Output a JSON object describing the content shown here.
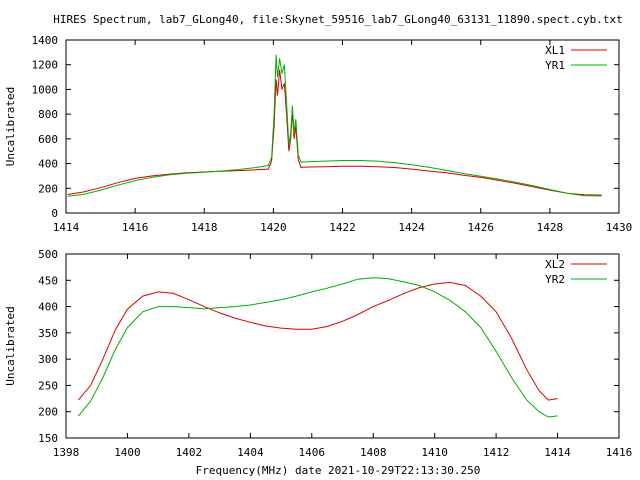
{
  "title": "HIRES Spectrum, lab7_GLong40, file:Skynet_59516_lab7_GLong40_63131_11890.spect.cyb.txt",
  "xlabel": "Frequency(MHz) date 2021-10-29T22:13:30.250",
  "chart_data": [
    {
      "type": "line",
      "ylabel": "Uncalibrated",
      "xlim": [
        1414,
        1430
      ],
      "ylim": [
        0,
        1400
      ],
      "xticks": [
        1414,
        1416,
        1418,
        1420,
        1422,
        1424,
        1426,
        1428,
        1430
      ],
      "yticks": [
        0,
        200,
        400,
        600,
        800,
        1000,
        1200,
        1400
      ],
      "legend": "top-right",
      "series": [
        {
          "name": "XL1",
          "color": "#dd0000",
          "points": [
            [
              1414.05,
              150
            ],
            [
              1414.5,
              170
            ],
            [
              1415,
              205
            ],
            [
              1415.5,
              245
            ],
            [
              1416,
              280
            ],
            [
              1416.5,
              300
            ],
            [
              1417,
              315
            ],
            [
              1417.5,
              325
            ],
            [
              1418,
              332
            ],
            [
              1418.5,
              338
            ],
            [
              1419,
              343
            ],
            [
              1419.5,
              350
            ],
            [
              1419.85,
              355
            ],
            [
              1419.95,
              420
            ],
            [
              1420.02,
              700
            ],
            [
              1420.08,
              1080
            ],
            [
              1420.12,
              950
            ],
            [
              1420.18,
              1160
            ],
            [
              1420.25,
              1000
            ],
            [
              1420.32,
              1050
            ],
            [
              1420.38,
              800
            ],
            [
              1420.45,
              500
            ],
            [
              1420.5,
              600
            ],
            [
              1420.55,
              820
            ],
            [
              1420.6,
              600
            ],
            [
              1420.65,
              700
            ],
            [
              1420.72,
              430
            ],
            [
              1420.8,
              370
            ],
            [
              1421,
              372
            ],
            [
              1421.5,
              375
            ],
            [
              1422,
              378
            ],
            [
              1422.5,
              378
            ],
            [
              1423,
              375
            ],
            [
              1423.5,
              368
            ],
            [
              1424,
              355
            ],
            [
              1424.5,
              340
            ],
            [
              1425,
              325
            ],
            [
              1425.5,
              305
            ],
            [
              1426,
              288
            ],
            [
              1426.5,
              265
            ],
            [
              1427,
              240
            ],
            [
              1427.5,
              212
            ],
            [
              1428,
              185
            ],
            [
              1428.5,
              160
            ],
            [
              1429,
              148
            ],
            [
              1429.5,
              145
            ]
          ]
        },
        {
          "name": "YR1",
          "color": "#00b000",
          "points": [
            [
              1414.05,
              135
            ],
            [
              1414.5,
              150
            ],
            [
              1415,
              185
            ],
            [
              1415.5,
              225
            ],
            [
              1416,
              262
            ],
            [
              1416.5,
              290
            ],
            [
              1417,
              310
            ],
            [
              1417.5,
              322
            ],
            [
              1418,
              330
            ],
            [
              1418.5,
              340
            ],
            [
              1419,
              352
            ],
            [
              1419.5,
              368
            ],
            [
              1419.85,
              385
            ],
            [
              1419.95,
              450
            ],
            [
              1420.02,
              800
            ],
            [
              1420.08,
              1280
            ],
            [
              1420.12,
              1100
            ],
            [
              1420.18,
              1250
            ],
            [
              1420.25,
              1130
            ],
            [
              1420.32,
              1200
            ],
            [
              1420.38,
              900
            ],
            [
              1420.45,
              550
            ],
            [
              1420.5,
              650
            ],
            [
              1420.55,
              870
            ],
            [
              1420.6,
              650
            ],
            [
              1420.65,
              760
            ],
            [
              1420.72,
              470
            ],
            [
              1420.8,
              410
            ],
            [
              1421,
              415
            ],
            [
              1421.5,
              420
            ],
            [
              1422,
              425
            ],
            [
              1422.5,
              425
            ],
            [
              1423,
              420
            ],
            [
              1423.5,
              408
            ],
            [
              1424,
              390
            ],
            [
              1424.5,
              370
            ],
            [
              1425,
              345
            ],
            [
              1425.5,
              320
            ],
            [
              1426,
              298
            ],
            [
              1426.5,
              275
            ],
            [
              1427,
              250
            ],
            [
              1427.5,
              222
            ],
            [
              1428,
              190
            ],
            [
              1428.5,
              160
            ],
            [
              1429,
              140
            ],
            [
              1429.5,
              138
            ]
          ]
        }
      ]
    },
    {
      "type": "line",
      "ylabel": "Uncalibrated",
      "xlim": [
        1398,
        1416
      ],
      "ylim": [
        150,
        500
      ],
      "xticks": [
        1398,
        1400,
        1402,
        1404,
        1406,
        1408,
        1410,
        1412,
        1414,
        1416
      ],
      "yticks": [
        150,
        200,
        250,
        300,
        350,
        400,
        450,
        500
      ],
      "legend": "top-right",
      "series": [
        {
          "name": "XL2",
          "color": "#dd0000",
          "points": [
            [
              1398.4,
              222
            ],
            [
              1398.8,
              250
            ],
            [
              1399.2,
              300
            ],
            [
              1399.6,
              355
            ],
            [
              1400,
              395
            ],
            [
              1400.5,
              420
            ],
            [
              1401,
              428
            ],
            [
              1401.5,
              425
            ],
            [
              1402,
              413
            ],
            [
              1402.5,
              400
            ],
            [
              1403,
              388
            ],
            [
              1403.5,
              378
            ],
            [
              1404,
              370
            ],
            [
              1404.5,
              363
            ],
            [
              1405,
              359
            ],
            [
              1405.5,
              357
            ],
            [
              1406,
              357
            ],
            [
              1406.5,
              362
            ],
            [
              1407,
              372
            ],
            [
              1407.5,
              385
            ],
            [
              1408,
              400
            ],
            [
              1408.5,
              412
            ],
            [
              1409,
              425
            ],
            [
              1409.5,
              436
            ],
            [
              1410,
              443
            ],
            [
              1410.5,
              446
            ],
            [
              1411,
              440
            ],
            [
              1411.5,
              420
            ],
            [
              1412,
              390
            ],
            [
              1412.5,
              340
            ],
            [
              1413,
              280
            ],
            [
              1413.4,
              240
            ],
            [
              1413.7,
              222
            ],
            [
              1414,
              225
            ]
          ]
        },
        {
          "name": "YR2",
          "color": "#00b000",
          "points": [
            [
              1398.4,
              192
            ],
            [
              1398.8,
              220
            ],
            [
              1399.2,
              265
            ],
            [
              1399.6,
              318
            ],
            [
              1400,
              360
            ],
            [
              1400.5,
              390
            ],
            [
              1401,
              400
            ],
            [
              1401.5,
              400
            ],
            [
              1402,
              398
            ],
            [
              1402.5,
              396
            ],
            [
              1403,
              398
            ],
            [
              1403.5,
              400
            ],
            [
              1404,
              403
            ],
            [
              1404.5,
              408
            ],
            [
              1405,
              413
            ],
            [
              1405.5,
              420
            ],
            [
              1406,
              428
            ],
            [
              1406.5,
              435
            ],
            [
              1407,
              443
            ],
            [
              1407.5,
              452
            ],
            [
              1408,
              455
            ],
            [
              1408.5,
              453
            ],
            [
              1409,
              447
            ],
            [
              1409.5,
              440
            ],
            [
              1410,
              428
            ],
            [
              1410.5,
              412
            ],
            [
              1411,
              390
            ],
            [
              1411.5,
              360
            ],
            [
              1412,
              315
            ],
            [
              1412.5,
              265
            ],
            [
              1413,
              222
            ],
            [
              1413.4,
              200
            ],
            [
              1413.7,
              190
            ],
            [
              1414,
              192
            ]
          ]
        }
      ]
    }
  ]
}
